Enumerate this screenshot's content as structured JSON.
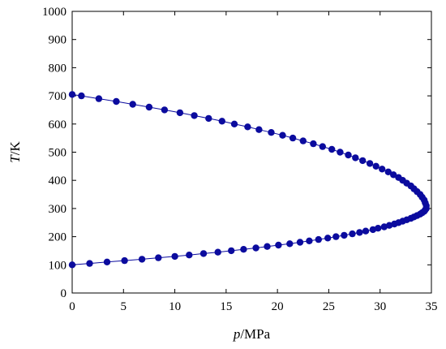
{
  "chart_data": {
    "type": "scatter",
    "title": "",
    "xlabel": {
      "var": "p",
      "unit": "/MPa"
    },
    "ylabel": {
      "var": "T",
      "unit": "/K"
    },
    "xlim": [
      0,
      35
    ],
    "ylim": [
      0,
      1000
    ],
    "xticks": [
      "0",
      "5",
      "10",
      "15",
      "20",
      "25",
      "30",
      "35"
    ],
    "yticks": [
      "0",
      "100",
      "200",
      "300",
      "400",
      "500",
      "600",
      "700",
      "800",
      "900",
      "1000"
    ],
    "grid": false,
    "legend": "none",
    "series": [
      {
        "color": "#0b0b9e",
        "marker": "circle",
        "connected": true,
        "points": [
          [
            0.0,
            100
          ],
          [
            1.7,
            105
          ],
          [
            3.4,
            110
          ],
          [
            5.1,
            115
          ],
          [
            6.8,
            120
          ],
          [
            8.4,
            125
          ],
          [
            10.0,
            130
          ],
          [
            11.4,
            135
          ],
          [
            12.8,
            140
          ],
          [
            14.2,
            145
          ],
          [
            15.5,
            150
          ],
          [
            16.7,
            155
          ],
          [
            17.9,
            160
          ],
          [
            19.0,
            165
          ],
          [
            20.1,
            170
          ],
          [
            21.2,
            175
          ],
          [
            22.2,
            180
          ],
          [
            23.1,
            185
          ],
          [
            24.0,
            190
          ],
          [
            24.9,
            195
          ],
          [
            25.7,
            200
          ],
          [
            26.5,
            205
          ],
          [
            27.3,
            210
          ],
          [
            28.0,
            215
          ],
          [
            28.6,
            220
          ],
          [
            29.3,
            225
          ],
          [
            29.8,
            230
          ],
          [
            30.4,
            235
          ],
          [
            30.9,
            240
          ],
          [
            31.4,
            245
          ],
          [
            31.8,
            250
          ],
          [
            32.2,
            255
          ],
          [
            32.6,
            260
          ],
          [
            33.0,
            265
          ],
          [
            33.3,
            270
          ],
          [
            33.6,
            275
          ],
          [
            33.9,
            280
          ],
          [
            34.1,
            285
          ],
          [
            34.3,
            290
          ],
          [
            34.4,
            295
          ],
          [
            34.5,
            300
          ],
          [
            34.5,
            310
          ],
          [
            34.4,
            320
          ],
          [
            34.3,
            330
          ],
          [
            34.1,
            340
          ],
          [
            33.9,
            350
          ],
          [
            33.6,
            360
          ],
          [
            33.3,
            370
          ],
          [
            33.0,
            380
          ],
          [
            32.6,
            390
          ],
          [
            32.2,
            400
          ],
          [
            31.8,
            410
          ],
          [
            31.3,
            420
          ],
          [
            30.8,
            430
          ],
          [
            30.2,
            440
          ],
          [
            29.6,
            450
          ],
          [
            29.0,
            460
          ],
          [
            28.3,
            470
          ],
          [
            27.6,
            480
          ],
          [
            26.9,
            490
          ],
          [
            26.1,
            500
          ],
          [
            25.3,
            510
          ],
          [
            24.4,
            520
          ],
          [
            23.5,
            530
          ],
          [
            22.5,
            540
          ],
          [
            21.5,
            550
          ],
          [
            20.5,
            560
          ],
          [
            19.4,
            570
          ],
          [
            18.2,
            580
          ],
          [
            17.1,
            590
          ],
          [
            15.8,
            600
          ],
          [
            14.6,
            610
          ],
          [
            13.3,
            620
          ],
          [
            11.9,
            630
          ],
          [
            10.5,
            640
          ],
          [
            9.0,
            650
          ],
          [
            7.5,
            660
          ],
          [
            5.9,
            670
          ],
          [
            4.3,
            680
          ],
          [
            2.6,
            690
          ],
          [
            0.9,
            700
          ],
          [
            0.0,
            705
          ]
        ]
      }
    ]
  }
}
